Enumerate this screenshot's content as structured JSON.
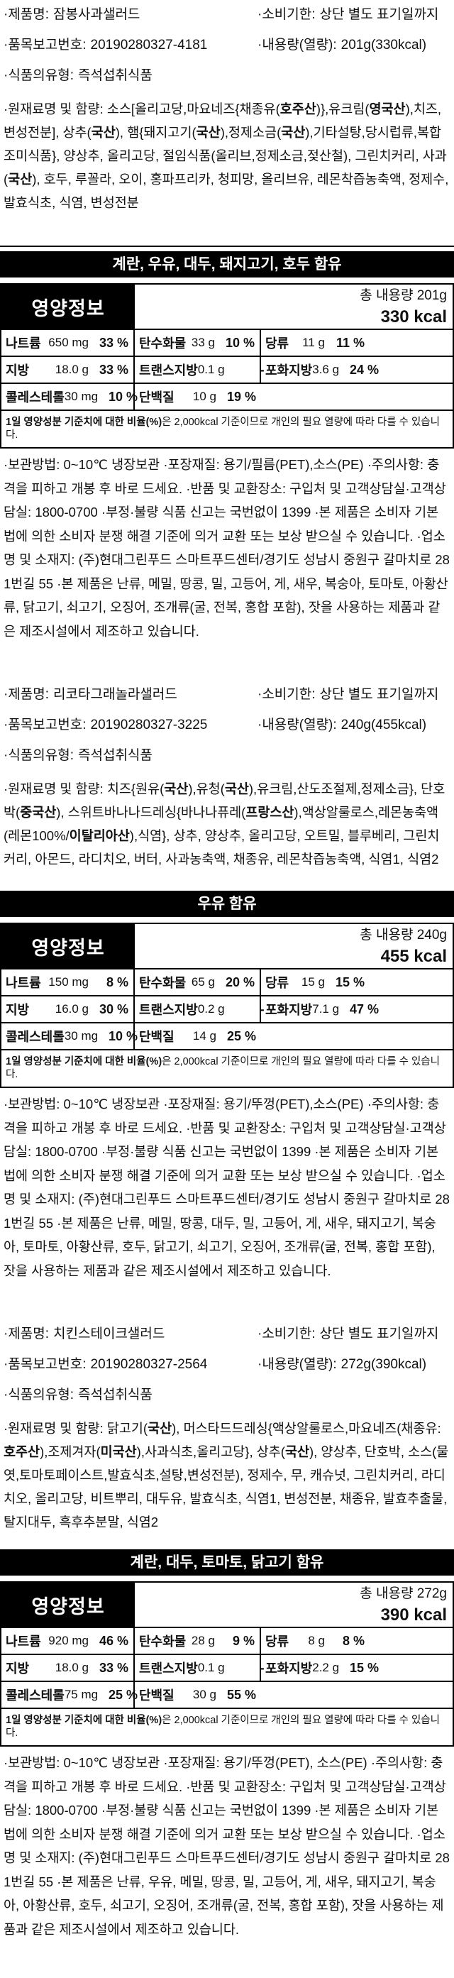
{
  "labels": {
    "nutrition_title": "영양정보",
    "footnote_rich": "**1일 영양성분 기준치에 대한 비율(%)**은 2,000kcal 기준이므로 개인의 필요 열량에 따라 다를 수 있습니다."
  },
  "products": [
    {
      "name": {
        "label": "·제품명:",
        "value": "잠봉사과샐러드"
      },
      "expiry": {
        "label": "·소비기한:",
        "value": "상단 별도 표기일까지"
      },
      "report": {
        "label": "·품목보고번호:",
        "value": "20190280327-4181"
      },
      "amount": {
        "label": "·내용량(열량):",
        "value": "201g(330kcal)"
      },
      "type": {
        "label": "·식품의유형:",
        "value": "즉석섭취식품"
      },
      "ingredients_rich": "·원재료명 및 함량: 소스[올리고당,마요네즈{채종유(**호주산**)},유크림(**영국산**),치즈,변성전분], 상추(**국산**), 햄{돼지고기(**국산**),정제소금(**국산**),기타설탕,당시럽류,복합조미식품}, 양상추, 올리고당, 절임식품(올리브,정제소금,젖산철), 그린치커리, 사과(**국산**), 호두, 루꼴라, 오이, 홍파프리카, 청피망, 올리브유, 레몬착즙농축액, 정제수, 발효식초, 식염, 변성전분",
      "allergen": "계란, 우유, 대두, 돼지고기, 호두 함유",
      "total_amount": "총 내용량 201g",
      "total_kcal": "330 kcal",
      "rows": [
        [
          {
            "n": "나트륨",
            "v": "650 mg",
            "p": "33 %"
          },
          {
            "n": "탄수화물",
            "v": "33 g",
            "p": "10 %"
          },
          {
            "n": "당류",
            "v": "11 g",
            "p": "11 %"
          }
        ],
        [
          {
            "n": "지방",
            "v": "18.0 g",
            "p": "33 %"
          },
          {
            "n": "트랜스지방",
            "v": "0.1 g",
            "p": "-"
          },
          {
            "n": "포화지방",
            "v": "3.6 g",
            "p": "24 %"
          }
        ],
        [
          {
            "n": "콜레스테롤",
            "v": "30 mg",
            "p": "10 %"
          },
          {
            "n": "단백질",
            "v": "10 g",
            "p": "19 %"
          }
        ]
      ],
      "storage": "·보관방법: 0~10℃ 냉장보관 ·포장재질: 용기/필름(PET),소스(PE) ·주의사항: 충격을 피하고 개봉 후 바로 드세요. ·반품 및 교환장소: 구입처 및 고객상담실·고객상담실: 1800-0700 ·부정·불량 식품 신고는 국번없이 1399 ·본 제품은 소비자 기본법에 의한 소비자 분쟁 해결 기준에 의거 교환 또는 보상 받으실 수 있습니다.  ·업소명 및 소재지: (주)현대그린푸드 스마트푸드센터/경기도 성남시 중원구 갈마치로 281번길 55 ·본 제품은 난류, 메밀, 땅콩, 밀, 고등어, 게, 새우, 복숭아, 토마토, 아황산류, 닭고기, 쇠고기, 오징어, 조개류(굴, 전복, 홍합 포함), 잣을 사용하는 제품과 같은 제조시설에서 제조하고 있습니다."
    },
    {
      "name": {
        "label": "·제품명:",
        "value": "리코타그래놀라샐러드"
      },
      "expiry": {
        "label": "·소비기한:",
        "value": "상단 별도 표기일까지"
      },
      "report": {
        "label": "·품목보고번호:",
        "value": "20190280327-3225"
      },
      "amount": {
        "label": "·내용량(열량):",
        "value": "240g(455kcal)"
      },
      "type": {
        "label": "·식품의유형:",
        "value": "즉석섭취식품"
      },
      "ingredients_rich": "·원재료명 및 함량: 치즈{원유(**국산**),유청(**국산**),유크림,산도조절제,정제소금}, 단호박(**중국산**), 스위트바나나드레싱{바나나퓨레(**프랑스산**),액상알룰로스,레몬농축액(레몬100%/**이탈리아산**),식염}, 상추, 양상추, 올리고당, 오트밀, 블루베리, 그린치커리, 아몬드, 라디치오, 버터, 사과농축액, 채종유, 레몬착즙농축액, 식염1, 식염2",
      "allergen": "우유 함유",
      "total_amount": "총 내용량 240g",
      "total_kcal": "455 kcal",
      "rows": [
        [
          {
            "n": "나트륨",
            "v": "150 mg",
            "p": "8 %"
          },
          {
            "n": "탄수화물",
            "v": "65 g",
            "p": "20 %"
          },
          {
            "n": "당류",
            "v": "15 g",
            "p": "15 %"
          }
        ],
        [
          {
            "n": "지방",
            "v": "16.0 g",
            "p": "30 %"
          },
          {
            "n": "트랜스지방",
            "v": "0.2 g",
            "p": "-"
          },
          {
            "n": "포화지방",
            "v": "7.1 g",
            "p": "47 %"
          }
        ],
        [
          {
            "n": "콜레스테롤",
            "v": "30 mg",
            "p": "10 %"
          },
          {
            "n": "단백질",
            "v": "14 g",
            "p": "25 %"
          }
        ]
      ],
      "storage": "·보관방법: 0~10℃ 냉장보관 ·포장재질: 용기/뚜껑(PET),소스(PE) ·주의사항: 충격을 피하고 개봉 후 바로 드세요. ·반품 및 교환장소: 구입처 및 고객상담실·고객상담실: 1800-0700 ·부정·불량 식품 신고는 국번없이 1399 ·본 제품은 소비자 기본법에 의한 소비자 분쟁 해결 기준에 의거 교환 또는 보상 받으실 수 있습니다.  ·업소명 및 소재지: (주)현대그린푸드 스마트푸드센터/경기도 성남시 중원구 갈마치로 281번길 55 ·본 제품은 난류, 메밀, 땅콩, 대두, 밀, 고등어, 게, 새우, 돼지고기, 복숭아, 토마토, 아황산류, 호두, 닭고기, 쇠고기, 오징어, 조개류(굴, 전복, 홍합 포함), 잣을 사용하는 제품과 같은 제조시설에서 제조하고 있습니다."
    },
    {
      "name": {
        "label": "·제품명:",
        "value": "치킨스테이크샐러드"
      },
      "expiry": {
        "label": "·소비기한:",
        "value": "상단 별도 표기일까지"
      },
      "report": {
        "label": "·품목보고번호:",
        "value": "20190280327-2564"
      },
      "amount": {
        "label": "·내용량(열량):",
        "value": "272g(390kcal)"
      },
      "type": {
        "label": "·식품의유형:",
        "value": "즉석섭취식품"
      },
      "ingredients_rich": "·원재료명 및 함량: 닭고기(**국산**), 머스타드드레싱{액상알룰로스,마요네즈(채종유:**호주산**),조제겨자(**미국산**),사과식초,올리고당}, 상추(**국산**), 양상추, 단호박, 소스(물엿,토마토페이스트,발효식초,설탕,변성전분), 정제수, 무, 캐슈넛, 그린치커리, 라디치오, 올리고당, 비트뿌리, 대두유, 발효식초, 식염1, 변성전분, 채종유, 발효추출물, 탈지대두, 흑후추분말, 식염2",
      "allergen": "계란, 대두, 토마토, 닭고기 함유",
      "total_amount": "총 내용량 272g",
      "total_kcal": "390 kcal",
      "rows": [
        [
          {
            "n": "나트륨",
            "v": "920 mg",
            "p": "46 %"
          },
          {
            "n": "탄수화물",
            "v": "28 g",
            "p": "9 %"
          },
          {
            "n": "당류",
            "v": "8 g",
            "p": "8 %"
          }
        ],
        [
          {
            "n": "지방",
            "v": "18.0 g",
            "p": "33 %"
          },
          {
            "n": "트랜스지방",
            "v": "0.1 g",
            "p": "-"
          },
          {
            "n": "포화지방",
            "v": "2.2 g",
            "p": "15 %"
          }
        ],
        [
          {
            "n": "콜레스테롤",
            "v": "75 mg",
            "p": "25 %"
          },
          {
            "n": "단백질",
            "v": "30 g",
            "p": "55 %"
          }
        ]
      ],
      "storage": "·보관방법: 0~10℃ 냉장보관 ·포장재질: 용기/뚜껑(PET), 소스(PE) ·주의사항: 충격을 피하고 개봉 후 바로 드세요. ·반품 및 교환장소: 구입처 및 고객상담실·고객상담실: 1800-0700 ·부정·불량 식품 신고는 국번없이 1399 ·본 제품은 소비자 기본법에 의한 소비자 분쟁 해결 기준에 의거 교환 또는 보상 받으실 수 있습니다.  ·업소명 및 소재지: (주)현대그린푸드 스마트푸드센터/경기도 성남시 중원구 갈마치로 281번길 55 ·본 제품은 난류, 우유, 메밀, 땅콩, 밀, 고등어, 게, 새우, 돼지고기, 복숭아, 아황산류, 호두, 쇠고기, 오징어, 조개류(굴, 전복, 홍합 포함), 잣을 사용하는 제품과 같은 제조시설에서 제조하고 있습니다."
    }
  ]
}
